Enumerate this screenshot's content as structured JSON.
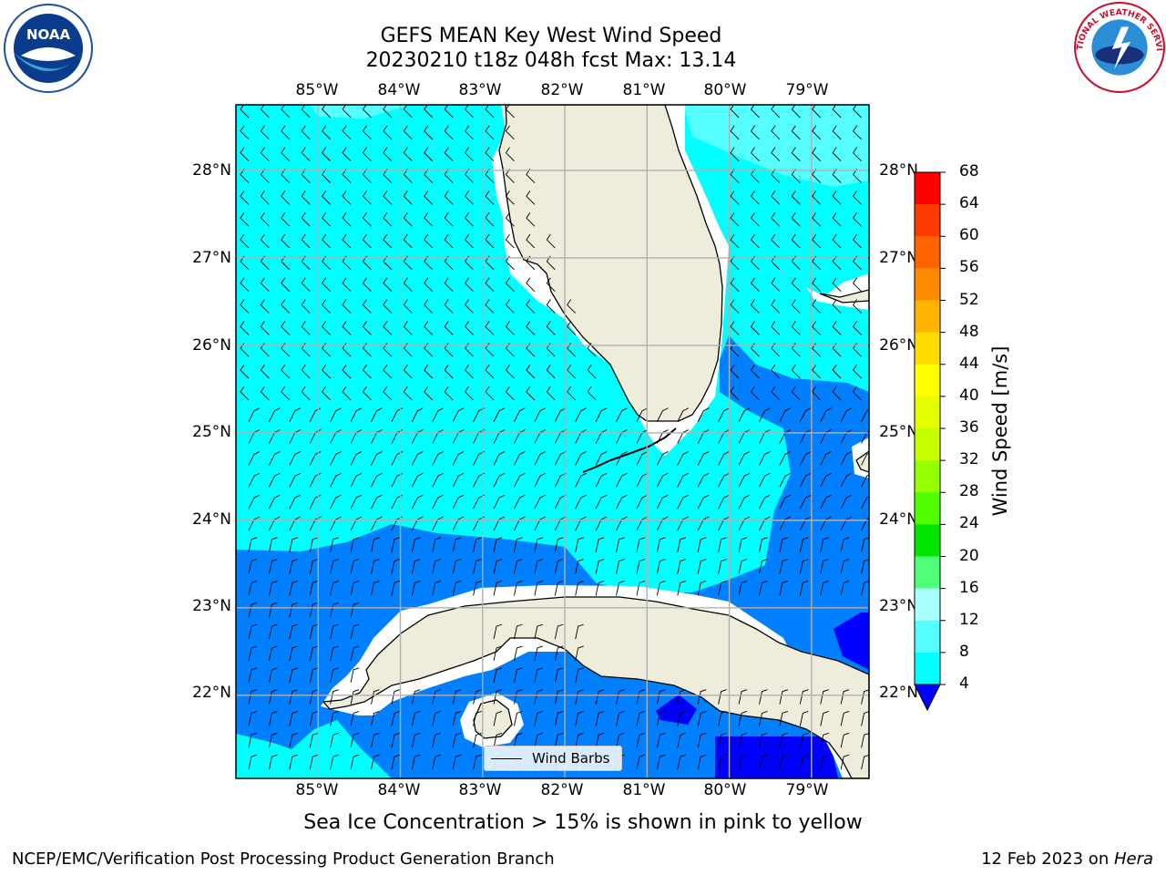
{
  "header": {
    "title_line1": "GEFS MEAN Key West Wind Speed",
    "title_line2": "20230210 t18z 048h fcst   Max: 13.14"
  },
  "logos": {
    "left": {
      "text": "NOAA",
      "icon": "noaa-logo-icon"
    },
    "right": {
      "text": "NATIONAL WEATHER SERVICE",
      "icon": "nws-logo-icon"
    }
  },
  "map": {
    "longitude_labels": [
      "85°W",
      "84°W",
      "83°W",
      "82°W",
      "81°W",
      "80°W",
      "79°W"
    ],
    "latitude_labels": [
      "28°N",
      "27°N",
      "26°N",
      "25°N",
      "24°N",
      "23°N",
      "22°N"
    ],
    "lon_range": [
      -86,
      -78.3
    ],
    "lat_range": [
      21.05,
      28.75
    ],
    "barb_spacing_deg": 0.25,
    "colors": {
      "land": "#eeeddc",
      "grid": "#b0b0b0",
      "band_4_8": "#0080ff",
      "band_8_12": "#00ffff",
      "band_12_16": "#55ffff",
      "band_lt_4": "#0000ff"
    }
  },
  "colorbar": {
    "label": "Wind Speed [m/s]",
    "ticks": [
      "68",
      "64",
      "60",
      "56",
      "52",
      "48",
      "44",
      "40",
      "36",
      "32",
      "28",
      "24",
      "20",
      "16",
      "12",
      "8",
      "4"
    ],
    "colors": [
      "#ff0000",
      "#ff3c00",
      "#ff6400",
      "#ff8c00",
      "#ffb400",
      "#ffdc00",
      "#ffff00",
      "#e6ff00",
      "#c8ff00",
      "#96ff00",
      "#50ff00",
      "#00e600",
      "#50ff7a",
      "#aaffff",
      "#55ffff",
      "#00ffff",
      "#0080ff"
    ],
    "extend_color": "#0000ff"
  },
  "legend": {
    "label": "Wind Barbs"
  },
  "notes": {
    "sea_ice": "Sea Ice Concentration > 15% is shown in pink to yellow"
  },
  "footer": {
    "left": "NCEP/EMC/Verification Post Processing Product Generation Branch",
    "date": "12 Feb 2023 on ",
    "host": "Hera"
  }
}
